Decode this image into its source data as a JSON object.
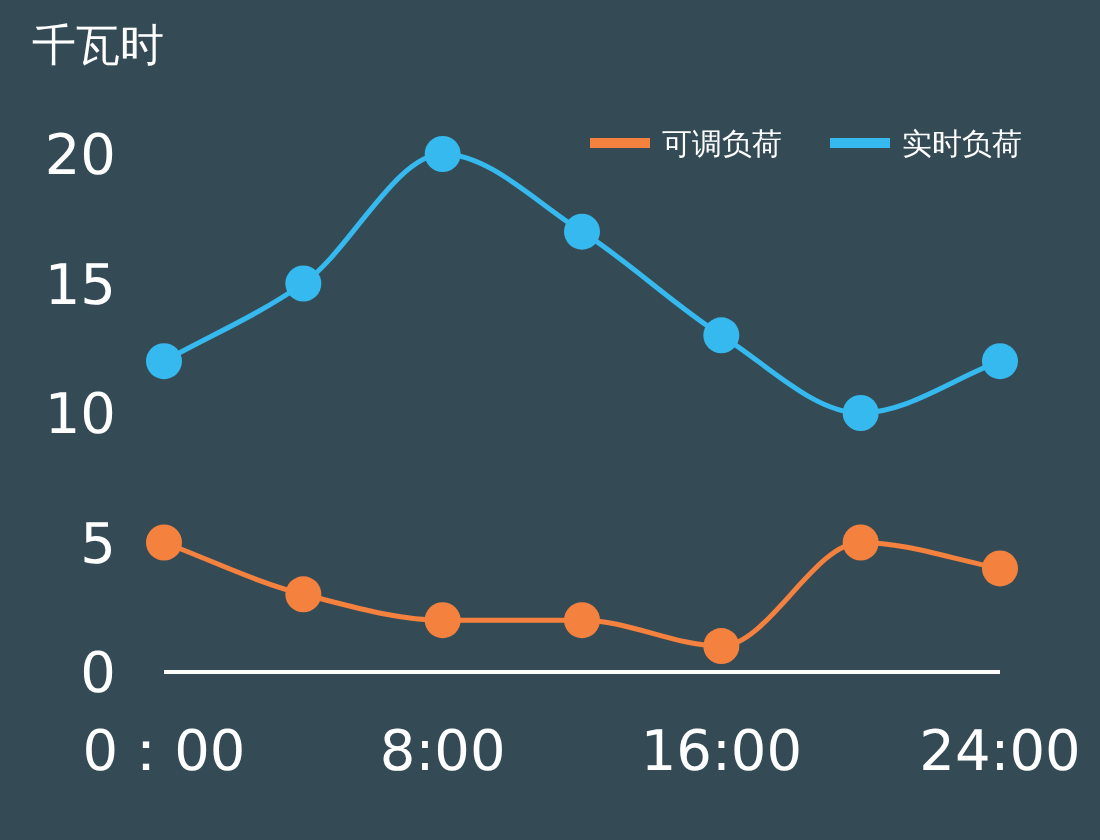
{
  "chart_data": {
    "type": "line",
    "ylabel": "千瓦时",
    "x": [
      0,
      4,
      8,
      12,
      16,
      20,
      24
    ],
    "series": [
      {
        "name": "可调负荷",
        "color": "#f5813f",
        "values": [
          5,
          3,
          2,
          2,
          1,
          5,
          4
        ]
      },
      {
        "name": "实时负荷",
        "color": "#35b9ee",
        "values": [
          12,
          15,
          20,
          17,
          13,
          10,
          12
        ]
      }
    ],
    "xlim": [
      0,
      24
    ],
    "xticks": [
      {
        "value": 0,
        "label": "0：00"
      },
      {
        "value": 8,
        "label": "8:00"
      },
      {
        "value": 16,
        "label": "16:00"
      },
      {
        "value": 24,
        "label": "24:00"
      }
    ],
    "ylim": [
      0,
      20
    ],
    "yticks": [
      0,
      5,
      10,
      15,
      20
    ],
    "grid": false,
    "legend": "top right",
    "marker": "circle",
    "line_style": "solid"
  }
}
